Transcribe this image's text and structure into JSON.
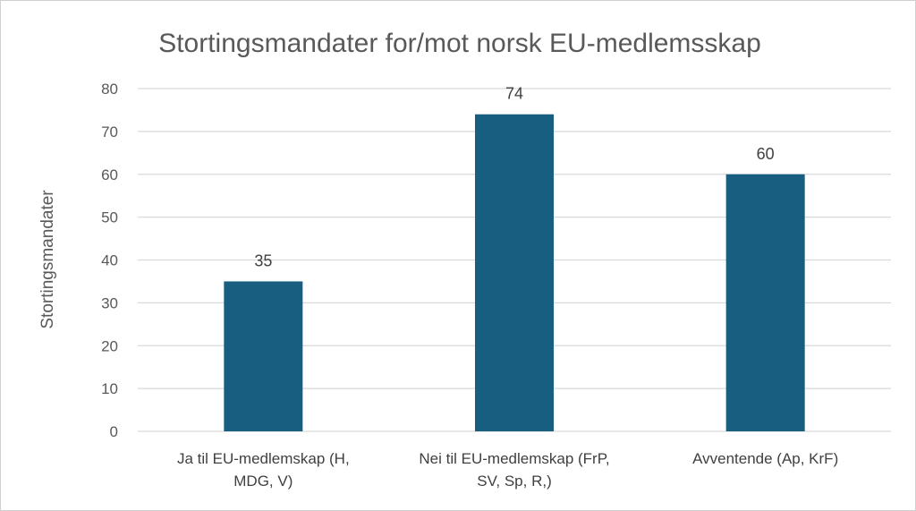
{
  "chart_data": {
    "type": "bar",
    "title": "Stortingsmandater for/mot norsk EU-medlemsskap",
    "ylabel": "Stortingsmandater",
    "xlabel": "",
    "categories": [
      [
        "Ja til EU-medlemskap (H,",
        "MDG, V)"
      ],
      [
        "Nei til EU-medlemskap (FrP,",
        "SV, Sp, R,)"
      ],
      [
        "Avventende (Ap, KrF)"
      ]
    ],
    "values": [
      35,
      74,
      60
    ],
    "data_labels": [
      "35",
      "74",
      "60"
    ],
    "yticks": [
      "0",
      "10",
      "20",
      "30",
      "40",
      "50",
      "60",
      "70",
      "80"
    ],
    "ylim": [
      0,
      80
    ],
    "grid": true,
    "legend": "none",
    "bar_color": "#175e81",
    "grid_color": "#d9d9d9"
  }
}
